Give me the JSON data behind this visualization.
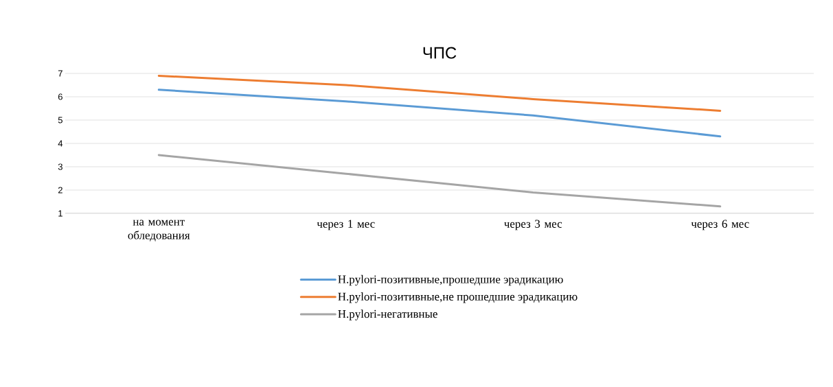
{
  "chart_data": {
    "type": "line",
    "title": "ЧПС",
    "categories": [
      "на момент обледования",
      "через 1 мес",
      "через 3 мес",
      "через 6 мес"
    ],
    "series": [
      {
        "name": "H.pylori-позитивные,прошедшие эрадикацию",
        "color": "#5b9bd5",
        "values": [
          6.3,
          5.8,
          5.2,
          4.3
        ]
      },
      {
        "name": "H.pylori-позитивные,не прошедшие эрадикацию",
        "color": "#ed7d31",
        "values": [
          6.9,
          6.5,
          5.9,
          5.4
        ]
      },
      {
        "name": "H.pylori-негативные",
        "color": "#a5a5a5",
        "values": [
          3.5,
          2.7,
          1.9,
          1.3
        ]
      }
    ],
    "ylim": [
      1,
      7
    ],
    "yticks": [
      1,
      2,
      3,
      4,
      5,
      6,
      7
    ],
    "grid": "y",
    "legend": "bottom",
    "marker": "none",
    "line_style": "solid"
  }
}
